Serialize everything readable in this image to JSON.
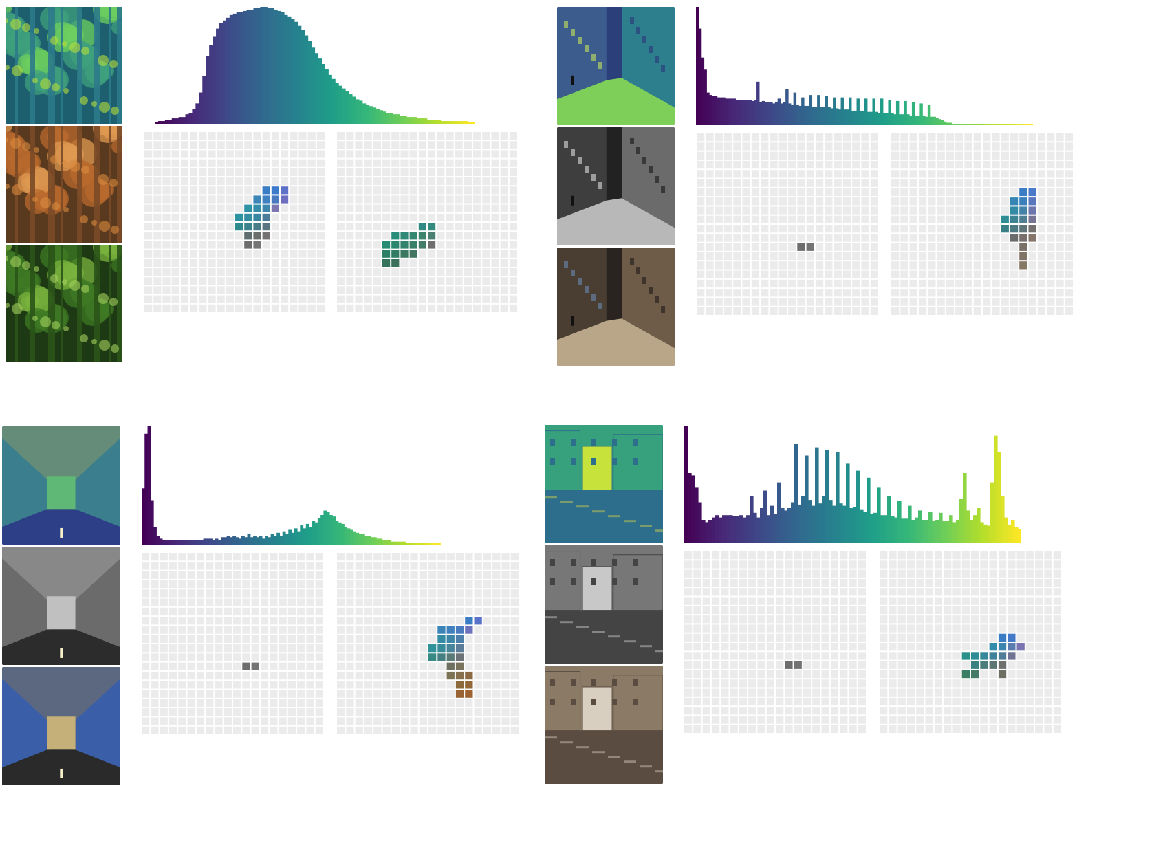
{
  "colors": {
    "viridis": [
      "#440154",
      "#482878",
      "#3e4989",
      "#31688e",
      "#26828e",
      "#1f9e89",
      "#35b779",
      "#6ece58",
      "#b5de2b",
      "#fde725"
    ],
    "grid_empty": "#ebebeb",
    "background": "#ffffff"
  },
  "thumbnail_types": [
    "viridis-mapped",
    "original-color",
    "recolored"
  ],
  "chart_data": [
    {
      "type": "bar",
      "subject": "forest",
      "thumbnails": [
        "viridis-forest",
        "autumn-forest",
        "green-forest"
      ],
      "histogram": [
        1,
        2,
        2,
        3,
        3,
        4,
        4,
        5,
        5,
        7,
        8,
        11,
        15,
        23,
        35,
        50,
        58,
        64,
        70,
        74,
        76,
        78,
        80,
        81,
        82,
        82,
        83,
        84,
        84,
        85,
        85,
        86,
        86,
        85,
        85,
        84,
        83,
        82,
        80,
        79,
        77,
        75,
        72,
        69,
        65,
        61,
        56,
        52,
        48,
        44,
        40,
        36,
        33,
        30,
        28,
        26,
        24,
        22,
        20,
        18,
        17,
        15,
        14,
        13,
        12,
        11,
        10,
        9,
        8,
        8,
        7,
        7,
        6,
        6,
        5,
        5,
        5,
        4,
        4,
        4,
        3,
        3,
        3,
        3,
        2,
        2,
        2,
        2,
        2,
        2,
        2,
        2,
        1,
        1
      ],
      "grids": [
        {
          "cells": [
            {
              "r": 6,
              "c": 13,
              "color": "#3a7dc4"
            },
            {
              "r": 6,
              "c": 14,
              "color": "#3e7acb"
            },
            {
              "r": 6,
              "c": 15,
              "color": "#5e71c9"
            },
            {
              "r": 7,
              "c": 12,
              "color": "#3b86b6"
            },
            {
              "r": 7,
              "c": 13,
              "color": "#3f80c0"
            },
            {
              "r": 7,
              "c": 14,
              "color": "#4a79c0"
            },
            {
              "r": 7,
              "c": 15,
              "color": "#6d6ec2"
            },
            {
              "r": 8,
              "c": 11,
              "color": "#2f93a8"
            },
            {
              "r": 8,
              "c": 12,
              "color": "#358ea9"
            },
            {
              "r": 8,
              "c": 13,
              "color": "#3e86ae"
            },
            {
              "r": 8,
              "c": 14,
              "color": "#7d76b0"
            },
            {
              "r": 9,
              "c": 10,
              "color": "#2d93a0"
            },
            {
              "r": 9,
              "c": 11,
              "color": "#318ea3"
            },
            {
              "r": 9,
              "c": 12,
              "color": "#3a87a3"
            },
            {
              "r": 9,
              "c": 13,
              "color": "#4b7d9a"
            },
            {
              "r": 10,
              "c": 10,
              "color": "#2f8a8e"
            },
            {
              "r": 10,
              "c": 11,
              "color": "#3a838c"
            },
            {
              "r": 10,
              "c": 12,
              "color": "#487d87"
            },
            {
              "r": 10,
              "c": 13,
              "color": "#5a7680"
            },
            {
              "r": 11,
              "c": 11,
              "color": "#5e6e70"
            },
            {
              "r": 11,
              "c": 12,
              "color": "#6c6d6d"
            },
            {
              "r": 11,
              "c": 13,
              "color": "#747272"
            },
            {
              "r": 12,
              "c": 11,
              "color": "#6c6c6c"
            },
            {
              "r": 12,
              "c": 12,
              "color": "#757575"
            }
          ]
        },
        {
          "cells": [
            {
              "r": 10,
              "c": 9,
              "color": "#2f8a86"
            },
            {
              "r": 10,
              "c": 10,
              "color": "#338a7f"
            },
            {
              "r": 11,
              "c": 6,
              "color": "#2a8d7a"
            },
            {
              "r": 11,
              "c": 7,
              "color": "#2e8a76"
            },
            {
              "r": 11,
              "c": 8,
              "color": "#358772"
            },
            {
              "r": 11,
              "c": 9,
              "color": "#3d846f"
            },
            {
              "r": 11,
              "c": 10,
              "color": "#4a7f72"
            },
            {
              "r": 12,
              "c": 5,
              "color": "#278a72"
            },
            {
              "r": 12,
              "c": 6,
              "color": "#2c866e"
            },
            {
              "r": 12,
              "c": 7,
              "color": "#31836b"
            },
            {
              "r": 12,
              "c": 8,
              "color": "#388068"
            },
            {
              "r": 12,
              "c": 9,
              "color": "#447c6a"
            },
            {
              "r": 12,
              "c": 10,
              "color": "#6e6e6e"
            },
            {
              "r": 13,
              "c": 5,
              "color": "#2d7f66"
            },
            {
              "r": 13,
              "c": 6,
              "color": "#327c63"
            },
            {
              "r": 13,
              "c": 7,
              "color": "#3a7960"
            },
            {
              "r": 13,
              "c": 8,
              "color": "#427660"
            },
            {
              "r": 14,
              "c": 5,
              "color": "#35735c"
            },
            {
              "r": 14,
              "c": 6,
              "color": "#3b705a"
            }
          ]
        }
      ]
    },
    {
      "type": "bar",
      "subject": "street-cyclist",
      "thumbnails": [
        "viridis-street",
        "grayscale-street",
        "recolored-street"
      ],
      "histogram": [
        98,
        80,
        56,
        46,
        27,
        25,
        24,
        24,
        23,
        23,
        23,
        22,
        22,
        22,
        22,
        21,
        21,
        21,
        21,
        21,
        21,
        20,
        21,
        36,
        19,
        20,
        19,
        19,
        19,
        18,
        19,
        22,
        18,
        19,
        30,
        18,
        17,
        27,
        17,
        16,
        23,
        16,
        16,
        25,
        15,
        15,
        25,
        15,
        15,
        24,
        15,
        14,
        23,
        14,
        13,
        23,
        13,
        13,
        23,
        12,
        12,
        22,
        12,
        12,
        22,
        11,
        11,
        22,
        11,
        10,
        22,
        10,
        10,
        21,
        10,
        9,
        20,
        9,
        9,
        20,
        9,
        8,
        19,
        8,
        8,
        18,
        8,
        7,
        17,
        7,
        7,
        6,
        5,
        4,
        3,
        2,
        2,
        1,
        1,
        1,
        1,
        1,
        1,
        1,
        1,
        1,
        1,
        1,
        1,
        1,
        1,
        1,
        1,
        1,
        1,
        1,
        1,
        1,
        1,
        1,
        1,
        1,
        1,
        1,
        1,
        1,
        1,
        1
      ],
      "grids": [
        {
          "cells": [
            {
              "r": 12,
              "c": 11,
              "color": "#6d6d6d"
            },
            {
              "r": 12,
              "c": 12,
              "color": "#737373"
            }
          ]
        },
        {
          "cells": [
            {
              "r": 6,
              "c": 14,
              "color": "#3a7dc4"
            },
            {
              "r": 6,
              "c": 15,
              "color": "#4a79c9"
            },
            {
              "r": 7,
              "c": 13,
              "color": "#3586b4"
            },
            {
              "r": 7,
              "c": 14,
              "color": "#3c80bb"
            },
            {
              "r": 7,
              "c": 15,
              "color": "#5a76bd"
            },
            {
              "r": 8,
              "c": 13,
              "color": "#348ba6"
            },
            {
              "r": 8,
              "c": 14,
              "color": "#4582a7"
            },
            {
              "r": 8,
              "c": 15,
              "color": "#6d75ad"
            },
            {
              "r": 9,
              "c": 12,
              "color": "#2f8d96"
            },
            {
              "r": 9,
              "c": 13,
              "color": "#3c8494"
            },
            {
              "r": 9,
              "c": 14,
              "color": "#4f7d92"
            },
            {
              "r": 9,
              "c": 15,
              "color": "#767492"
            },
            {
              "r": 10,
              "c": 12,
              "color": "#3a7f86"
            },
            {
              "r": 10,
              "c": 13,
              "color": "#4d7a82"
            },
            {
              "r": 10,
              "c": 14,
              "color": "#5f7479"
            },
            {
              "r": 10,
              "c": 15,
              "color": "#747070"
            },
            {
              "r": 11,
              "c": 13,
              "color": "#6a6c6c"
            },
            {
              "r": 11,
              "c": 14,
              "color": "#786f6d"
            },
            {
              "r": 11,
              "c": 15,
              "color": "#85746a"
            },
            {
              "r": 12,
              "c": 14,
              "color": "#7a7068"
            },
            {
              "r": 13,
              "c": 14,
              "color": "#807466"
            },
            {
              "r": 14,
              "c": 14,
              "color": "#857864"
            }
          ]
        }
      ]
    },
    {
      "type": "bar",
      "subject": "street-buildings",
      "thumbnails": [
        "viridis-avenue",
        "grayscale-avenue",
        "recolored-avenue"
      ],
      "histogram": [
        38,
        75,
        80,
        30,
        12,
        6,
        4,
        3,
        3,
        3,
        3,
        3,
        3,
        3,
        3,
        3,
        3,
        3,
        3,
        3,
        3,
        4,
        4,
        4,
        3,
        4,
        3,
        5,
        5,
        6,
        5,
        6,
        5,
        4,
        6,
        5,
        7,
        5,
        6,
        5,
        6,
        4,
        6,
        5,
        7,
        6,
        8,
        6,
        9,
        7,
        10,
        8,
        11,
        9,
        13,
        11,
        14,
        12,
        16,
        15,
        18,
        20,
        23,
        22,
        20,
        19,
        16,
        15,
        14,
        12,
        11,
        10,
        9,
        8,
        7,
        7,
        6,
        6,
        5,
        5,
        4,
        4,
        3,
        3,
        3,
        2,
        2,
        2,
        2,
        2,
        1,
        1,
        1,
        1,
        1,
        1,
        1,
        1,
        1,
        1,
        1,
        1
      ],
      "grids": [
        {
          "cells": [
            {
              "r": 12,
              "c": 11,
              "color": "#6d6d6d"
            },
            {
              "r": 12,
              "c": 12,
              "color": "#747474"
            }
          ]
        },
        {
          "cells": [
            {
              "r": 7,
              "c": 14,
              "color": "#3a7dc4"
            },
            {
              "r": 7,
              "c": 15,
              "color": "#5a72c9"
            },
            {
              "r": 8,
              "c": 11,
              "color": "#3b84b8"
            },
            {
              "r": 8,
              "c": 12,
              "color": "#3f80bd"
            },
            {
              "r": 8,
              "c": 13,
              "color": "#4a7bbe"
            },
            {
              "r": 8,
              "c": 14,
              "color": "#6c71bc"
            },
            {
              "r": 9,
              "c": 11,
              "color": "#338ba4"
            },
            {
              "r": 9,
              "c": 12,
              "color": "#3d86a8"
            },
            {
              "r": 9,
              "c": 13,
              "color": "#4c80ab"
            },
            {
              "r": 10,
              "c": 10,
              "color": "#2e9298"
            },
            {
              "r": 10,
              "c": 11,
              "color": "#388b98"
            },
            {
              "r": 10,
              "c": 12,
              "color": "#48849a"
            },
            {
              "r": 10,
              "c": 13,
              "color": "#5c7d9a"
            },
            {
              "r": 11,
              "c": 10,
              "color": "#378a84"
            },
            {
              "r": 11,
              "c": 11,
              "color": "#467f81"
            },
            {
              "r": 11,
              "c": 12,
              "color": "#5a7a78"
            },
            {
              "r": 11,
              "c": 13,
              "color": "#6c7276"
            },
            {
              "r": 12,
              "c": 12,
              "color": "#6e7062"
            },
            {
              "r": 12,
              "c": 13,
              "color": "#7a735c"
            },
            {
              "r": 13,
              "c": 12,
              "color": "#7c7254"
            },
            {
              "r": 13,
              "c": 13,
              "color": "#86704e"
            },
            {
              "r": 13,
              "c": 14,
              "color": "#8b6a44"
            },
            {
              "r": 14,
              "c": 13,
              "color": "#8c6a3c"
            },
            {
              "r": 14,
              "c": 14,
              "color": "#93663a"
            },
            {
              "r": 15,
              "c": 13,
              "color": "#996334"
            },
            {
              "r": 15,
              "c": 14,
              "color": "#9d6232"
            }
          ]
        }
      ]
    },
    {
      "type": "bar",
      "subject": "canal-houses",
      "thumbnails": [
        "viridis-canal",
        "grayscale-canal",
        "recolored-canal"
      ],
      "histogram": [
        100,
        60,
        58,
        48,
        35,
        20,
        18,
        20,
        22,
        24,
        22,
        24,
        24,
        24,
        23,
        23,
        24,
        22,
        24,
        40,
        26,
        22,
        30,
        45,
        24,
        32,
        25,
        52,
        30,
        28,
        30,
        35,
        85,
        33,
        40,
        75,
        37,
        32,
        82,
        34,
        40,
        80,
        37,
        32,
        78,
        34,
        32,
        68,
        30,
        31,
        62,
        29,
        27,
        56,
        25,
        26,
        48,
        24,
        24,
        40,
        23,
        22,
        36,
        21,
        21,
        32,
        20,
        22,
        28,
        20,
        20,
        27,
        19,
        20,
        26,
        19,
        19,
        24,
        18,
        20,
        38,
        60,
        28,
        20,
        24,
        30,
        18,
        16,
        15,
        52,
        92,
        78,
        40,
        22,
        16,
        20,
        14,
        12
      ],
      "grids": [
        {
          "cells": [
            {
              "r": 12,
              "c": 11,
              "color": "#6d6d6d"
            },
            {
              "r": 12,
              "c": 12,
              "color": "#737373"
            }
          ]
        },
        {
          "cells": [
            {
              "r": 9,
              "c": 13,
              "color": "#3a7dc4"
            },
            {
              "r": 9,
              "c": 14,
              "color": "#4379c6"
            },
            {
              "r": 10,
              "c": 12,
              "color": "#348cab"
            },
            {
              "r": 10,
              "c": 13,
              "color": "#3c86ad"
            },
            {
              "r": 10,
              "c": 14,
              "color": "#5a7caf"
            },
            {
              "r": 10,
              "c": 15,
              "color": "#7b74b2"
            },
            {
              "r": 11,
              "c": 9,
              "color": "#2a908a"
            },
            {
              "r": 11,
              "c": 10,
              "color": "#2f8c94"
            },
            {
              "r": 11,
              "c": 11,
              "color": "#36879a"
            },
            {
              "r": 11,
              "c": 12,
              "color": "#3f8299"
            },
            {
              "r": 11,
              "c": 13,
              "color": "#4f7c96"
            },
            {
              "r": 11,
              "c": 14,
              "color": "#6e7491"
            },
            {
              "r": 12,
              "c": 10,
              "color": "#3a8180"
            },
            {
              "r": 12,
              "c": 11,
              "color": "#4a7c7c"
            },
            {
              "r": 12,
              "c": 12,
              "color": "#5c7674"
            },
            {
              "r": 12,
              "c": 13,
              "color": "#6e716c"
            },
            {
              "r": 13,
              "c": 9,
              "color": "#3a7f63"
            },
            {
              "r": 13,
              "c": 10,
              "color": "#457a66"
            },
            {
              "r": 13,
              "c": 13,
              "color": "#6c6f62"
            }
          ]
        }
      ]
    }
  ]
}
